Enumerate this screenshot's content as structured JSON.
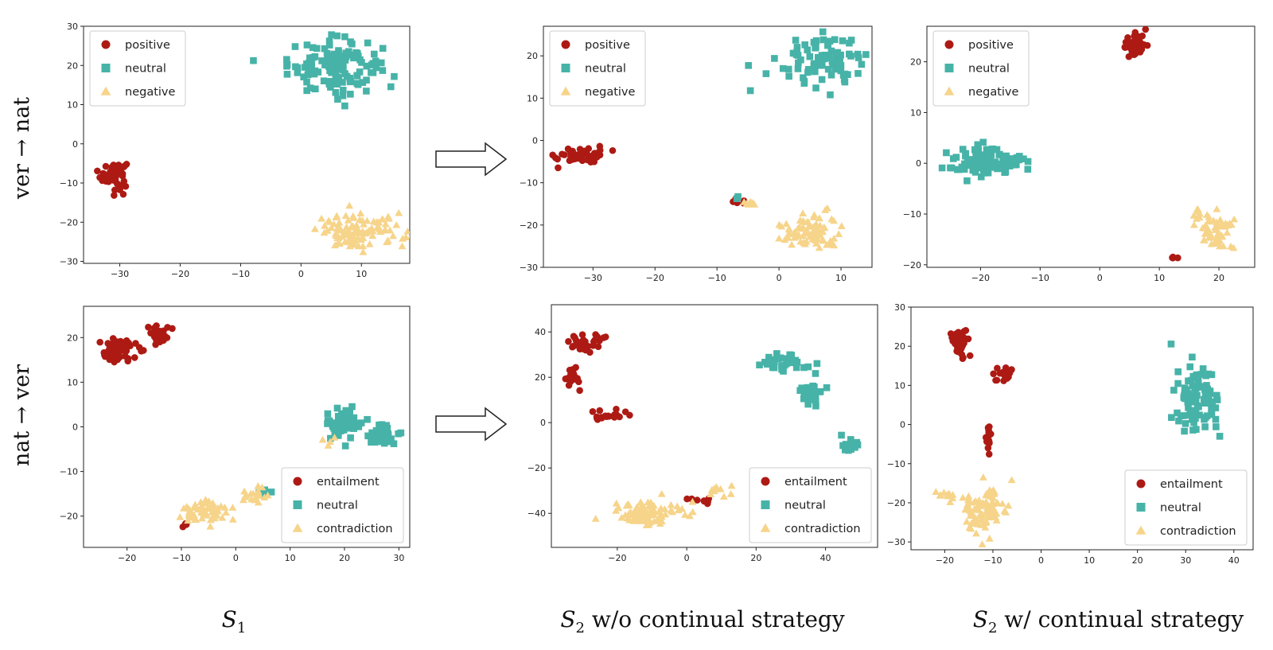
{
  "colors": {
    "positive": "#ad1a14",
    "neutral": "#47b3a8",
    "negative": "#f6d48a"
  },
  "row_labels": [
    "ver → nat",
    "nat → ver"
  ],
  "column_labels": [
    {
      "main": "S",
      "sub": "1",
      "rest": ""
    },
    {
      "main": "S",
      "sub": "2",
      "rest": " w/o continual strategy"
    },
    {
      "main": "S",
      "sub": "2",
      "rest": " w/ continual strategy"
    }
  ],
  "arrow_icon": "right-arrow-icon",
  "chart_data": [
    {
      "type": "scatter",
      "id": "r1c1",
      "legend_position": "top-left",
      "xlim": [
        -36,
        18
      ],
      "ylim": [
        -30.5,
        30
      ],
      "xticks": [
        -30,
        -20,
        -10,
        0,
        10
      ],
      "yticks": [
        -30,
        -20,
        -10,
        0,
        10,
        20,
        30
      ],
      "series": [
        {
          "name": "positive",
          "marker": "circle",
          "clusters": [
            {
              "cx": -31,
              "cy": -8,
              "sx": 2.4,
              "sy": 4,
              "n": 60
            }
          ]
        },
        {
          "name": "neutral",
          "marker": "square",
          "clusters": [
            {
              "cx": 5.5,
              "cy": 20,
              "sx": 8.5,
              "sy": 7.5,
              "n": 130
            }
          ]
        },
        {
          "name": "negative",
          "marker": "triangle",
          "clusters": [
            {
              "cx": 10,
              "cy": -22.5,
              "sx": 8,
              "sy": 5,
              "n": 110
            }
          ]
        }
      ]
    },
    {
      "type": "scatter",
      "id": "r1c2",
      "legend_position": "top-left",
      "xlim": [
        -38,
        15
      ],
      "ylim": [
        -30,
        27
      ],
      "xticks": [
        -30,
        -20,
        -10,
        0,
        10
      ],
      "yticks": [
        -30,
        -20,
        -10,
        0,
        10,
        20
      ],
      "series": [
        {
          "name": "positive",
          "marker": "circle",
          "clusters": [
            {
              "cx": -32,
              "cy": -3.5,
              "sx": 4.5,
              "sy": 2.2,
              "n": 45
            },
            {
              "cx": -6,
              "cy": -14.5,
              "sx": 2,
              "sy": 1,
              "n": 5
            }
          ]
        },
        {
          "name": "neutral",
          "marker": "square",
          "clusters": [
            {
              "cx": 7,
              "cy": 19,
              "sx": 8,
              "sy": 7,
              "n": 90
            },
            {
              "cx": -7,
              "cy": -13.5,
              "sx": 0.5,
              "sy": 0.5,
              "n": 2
            }
          ]
        },
        {
          "name": "negative",
          "marker": "triangle",
          "clusters": [
            {
              "cx": 5,
              "cy": -21.5,
              "sx": 5,
              "sy": 4.5,
              "n": 90
            },
            {
              "cx": -5,
              "cy": -15,
              "sx": 1.5,
              "sy": 0.6,
              "n": 8
            }
          ]
        }
      ]
    },
    {
      "type": "scatter",
      "id": "r1c3",
      "legend_position": "top-left",
      "xlim": [
        -29,
        26
      ],
      "ylim": [
        -20.5,
        27
      ],
      "xticks": [
        -20,
        -10,
        0,
        10,
        20
      ],
      "yticks": [
        -20,
        -10,
        0,
        10,
        20
      ],
      "series": [
        {
          "name": "positive",
          "marker": "circle",
          "clusters": [
            {
              "cx": 6,
              "cy": 23.5,
              "sx": 2,
              "sy": 2.5,
              "n": 60
            },
            {
              "cx": 12.5,
              "cy": -18.5,
              "sx": 1,
              "sy": 0.5,
              "n": 4
            }
          ]
        },
        {
          "name": "neutral",
          "marker": "square",
          "clusters": [
            {
              "cx": -19,
              "cy": 0,
              "sx": 7,
              "sy": 3.5,
              "n": 90
            }
          ]
        },
        {
          "name": "negative",
          "marker": "triangle",
          "clusters": [
            {
              "cx": 19,
              "cy": -13,
              "sx": 4,
              "sy": 4.5,
              "n": 60
            }
          ]
        }
      ]
    },
    {
      "type": "scatter",
      "id": "r2c1",
      "legend_position": "bottom-right",
      "xlim": [
        -28,
        32
      ],
      "ylim": [
        -27,
        27
      ],
      "xticks": [
        -20,
        -10,
        0,
        10,
        20,
        30
      ],
      "yticks": [
        -20,
        -10,
        0,
        10,
        20
      ],
      "series": [
        {
          "name": "entailment",
          "marker": "circle",
          "clusters": [
            {
              "cx": -22,
              "cy": 17,
              "sx": 4,
              "sy": 3,
              "n": 70
            },
            {
              "cx": -14,
              "cy": 21,
              "sx": 2,
              "sy": 3,
              "n": 25
            },
            {
              "cx": -10,
              "cy": -22,
              "sx": 1.5,
              "sy": 1,
              "n": 3
            }
          ]
        },
        {
          "name": "neutral",
          "marker": "square",
          "clusters": [
            {
              "cx": 20,
              "cy": 1,
              "sx": 3.5,
              "sy": 3.5,
              "n": 60
            },
            {
              "cx": 27,
              "cy": -2,
              "sx": 3,
              "sy": 2.2,
              "n": 40
            },
            {
              "cx": 5,
              "cy": -15,
              "sx": 1.5,
              "sy": 1.2,
              "n": 6
            }
          ]
        },
        {
          "name": "contradiction",
          "marker": "triangle",
          "clusters": [
            {
              "cx": -6,
              "cy": -19,
              "sx": 5,
              "sy": 3.2,
              "n": 60
            },
            {
              "cx": 3.5,
              "cy": -15,
              "sx": 2.5,
              "sy": 2,
              "n": 20
            },
            {
              "cx": 17,
              "cy": -3,
              "sx": 2,
              "sy": 1.5,
              "n": 4
            }
          ]
        }
      ]
    },
    {
      "type": "scatter",
      "id": "r2c2",
      "legend_position": "bottom-right",
      "xlim": [
        -39,
        55
      ],
      "ylim": [
        -55,
        52
      ],
      "xticks": [
        -20,
        0,
        20,
        40
      ],
      "yticks": [
        -40,
        -20,
        0,
        20,
        40
      ],
      "series": [
        {
          "name": "entailment",
          "marker": "circle",
          "clusters": [
            {
              "cx": -28,
              "cy": 36,
              "sx": 6,
              "sy": 6,
              "n": 30
            },
            {
              "cx": -33,
              "cy": 20,
              "sx": 2,
              "sy": 6,
              "n": 20
            },
            {
              "cx": -23,
              "cy": 3,
              "sx": 6,
              "sy": 2.5,
              "n": 20
            },
            {
              "cx": 5,
              "cy": -34,
              "sx": 6,
              "sy": 2,
              "n": 8
            }
          ]
        },
        {
          "name": "neutral",
          "marker": "square",
          "clusters": [
            {
              "cx": 27,
              "cy": 27,
              "sx": 8,
              "sy": 5,
              "n": 30
            },
            {
              "cx": 36,
              "cy": 13,
              "sx": 5,
              "sy": 6,
              "n": 30
            },
            {
              "cx": 47,
              "cy": -10,
              "sx": 4,
              "sy": 4,
              "n": 15
            }
          ]
        },
        {
          "name": "contradiction",
          "marker": "triangle",
          "clusters": [
            {
              "cx": -12,
              "cy": -40,
              "sx": 11,
              "sy": 6,
              "n": 100
            },
            {
              "cx": 8,
              "cy": -30,
              "sx": 5,
              "sy": 3,
              "n": 10
            }
          ]
        }
      ]
    },
    {
      "type": "scatter",
      "id": "r2c3",
      "legend_position": "bottom-right",
      "xlim": [
        -27,
        44
      ],
      "ylim": [
        -32,
        30
      ],
      "xticks": [
        -20,
        -10,
        0,
        10,
        20,
        30,
        40
      ],
      "yticks": [
        -30,
        -20,
        -10,
        0,
        10,
        20,
        30
      ],
      "series": [
        {
          "name": "entailment",
          "marker": "circle",
          "clusters": [
            {
              "cx": -17,
              "cy": 21,
              "sx": 2,
              "sy": 4,
              "n": 45
            },
            {
              "cx": -8,
              "cy": 13,
              "sx": 2.5,
              "sy": 2.5,
              "n": 20
            },
            {
              "cx": -11,
              "cy": -3,
              "sx": 0.5,
              "sy": 5,
              "n": 15
            }
          ]
        },
        {
          "name": "neutral",
          "marker": "square",
          "clusters": [
            {
              "cx": 32,
              "cy": 6,
              "sx": 5,
              "sy": 9,
              "n": 90
            }
          ]
        },
        {
          "name": "contradiction",
          "marker": "triangle",
          "clusters": [
            {
              "cx": -12,
              "cy": -21,
              "sx": 5,
              "sy": 6,
              "n": 100
            },
            {
              "cx": -20,
              "cy": -18,
              "sx": 3,
              "sy": 1.5,
              "n": 10
            }
          ]
        }
      ]
    }
  ]
}
